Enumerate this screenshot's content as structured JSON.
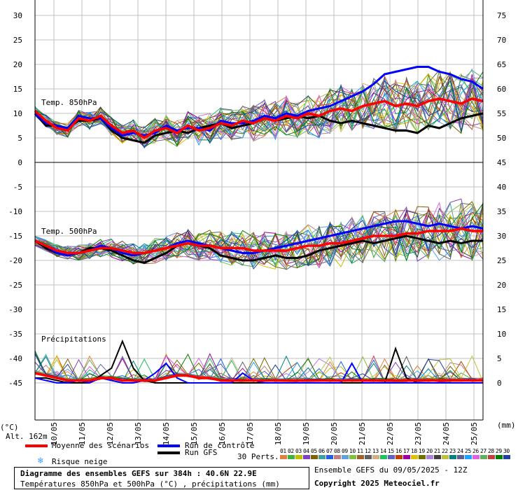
{
  "chart_data": {
    "type": "line",
    "title": "Diagramme des ensembles GEFS sur 384h : 40.6N 22.9E",
    "subtitle": "Températures 850hPa et 500hPa (°C) , précipitations (mm)",
    "dates": [
      "10/05",
      "11/05",
      "12/05",
      "13/05",
      "14/05",
      "15/05",
      "16/05",
      "17/05",
      "18/05",
      "19/05",
      "20/05",
      "21/05",
      "22/05",
      "23/05",
      "24/05",
      "25/05"
    ],
    "left_axis_ticks": [
      "30",
      "25",
      "20",
      "15",
      "10",
      "5",
      "0",
      "-5",
      "-10",
      "-15",
      "-20",
      "-25",
      "-30",
      "-35",
      "-40",
      "-45"
    ],
    "right_axis_ticks": [
      "75",
      "70",
      "65",
      "60",
      "55",
      "50",
      "45",
      "40",
      "35",
      "30",
      "25",
      "20",
      "15",
      "10",
      "5",
      "0"
    ],
    "left_unit": "(°C)",
    "right_unit": "(mm)",
    "altitude": "Alt. 162m",
    "panels": {
      "t850": {
        "label": "Temp. 850hPa",
        "mean": [
          10.5,
          8.5,
          7.0,
          6.5,
          9.0,
          8.5,
          9.5,
          7.5,
          6.0,
          6.5,
          5.0,
          6.5,
          7.0,
          6.0,
          7.5,
          6.5,
          7.0,
          8.0,
          7.5,
          8.5,
          8.0,
          9.0,
          8.5,
          9.5,
          9.0,
          10.0,
          9.5,
          10.5,
          11.0,
          10.5,
          11.5,
          12.0,
          12.5,
          11.5,
          12.0,
          11.5,
          12.5,
          13.0,
          12.5,
          12.0,
          13.0,
          12.5
        ],
        "control": [
          10.0,
          8.0,
          7.5,
          7.0,
          9.5,
          9.0,
          9.0,
          7.0,
          5.5,
          6.0,
          5.5,
          6.0,
          7.5,
          6.5,
          7.0,
          7.0,
          6.5,
          8.5,
          8.0,
          8.0,
          8.5,
          9.5,
          9.0,
          10.0,
          9.5,
          10.5,
          11.0,
          11.5,
          12.5,
          13.5,
          14.5,
          16.0,
          18.0,
          18.5,
          19.0,
          19.5,
          19.5,
          18.5,
          18.0,
          17.0,
          16.5,
          15.0
        ],
        "gfs": [
          10.0,
          7.5,
          7.5,
          7.0,
          8.5,
          8.5,
          9.0,
          6.5,
          5.0,
          4.5,
          4.0,
          5.5,
          6.0,
          6.5,
          6.0,
          7.0,
          7.5,
          8.0,
          7.0,
          7.5,
          8.0,
          9.0,
          8.5,
          9.0,
          9.5,
          9.0,
          9.5,
          8.5,
          8.0,
          8.5,
          8.0,
          7.5,
          7.0,
          6.5,
          6.5,
          6.0,
          7.5,
          7.0,
          8.0,
          9.0,
          9.5,
          10.0
        ]
      },
      "t500": {
        "label": "Temp. 500hPa",
        "mean": [
          -16.0,
          -17.0,
          -18.0,
          -18.5,
          -18.5,
          -18.0,
          -17.5,
          -17.5,
          -18.0,
          -18.5,
          -18.5,
          -18.0,
          -17.5,
          -17.0,
          -16.5,
          -17.0,
          -17.0,
          -17.5,
          -17.5,
          -17.5,
          -18.0,
          -18.0,
          -18.0,
          -18.0,
          -17.5,
          -17.0,
          -17.0,
          -16.5,
          -16.5,
          -16.0,
          -15.5,
          -15.0,
          -15.0,
          -15.0,
          -14.5,
          -14.5,
          -14.0,
          -14.0,
          -14.0,
          -13.5,
          -14.0,
          -14.0
        ],
        "control": [
          -16.0,
          -17.0,
          -18.5,
          -19.0,
          -18.5,
          -18.0,
          -17.0,
          -17.5,
          -18.5,
          -19.0,
          -18.5,
          -18.0,
          -17.5,
          -16.5,
          -16.0,
          -16.5,
          -17.0,
          -17.5,
          -18.0,
          -18.5,
          -18.5,
          -18.0,
          -17.5,
          -17.0,
          -16.5,
          -16.0,
          -15.5,
          -15.0,
          -14.5,
          -14.0,
          -13.5,
          -13.0,
          -12.5,
          -12.0,
          -12.0,
          -12.5,
          -13.0,
          -12.5,
          -13.0,
          -13.5,
          -13.0,
          -13.5
        ],
        "gfs": [
          -16.0,
          -17.5,
          -18.5,
          -19.0,
          -18.5,
          -17.5,
          -17.5,
          -18.0,
          -19.0,
          -20.0,
          -20.5,
          -19.5,
          -18.5,
          -17.0,
          -16.5,
          -17.0,
          -17.5,
          -19.0,
          -19.5,
          -20.0,
          -20.0,
          -19.5,
          -19.0,
          -19.5,
          -19.5,
          -19.0,
          -18.0,
          -17.5,
          -17.0,
          -16.5,
          -16.0,
          -16.5,
          -16.0,
          -15.5,
          -15.0,
          -15.5,
          -16.0,
          -16.5,
          -16.0,
          -16.5,
          -16.0,
          -16.0
        ]
      },
      "precip": {
        "label": "Précipitations",
        "mean": [
          2,
          1.5,
          1,
          0.5,
          0.5,
          0.5,
          1,
          1,
          0.5,
          0.5,
          0.5,
          0.5,
          1,
          1.5,
          1.5,
          1,
          1,
          0.5,
          0.5,
          0.5,
          0.5,
          0.5,
          0.5,
          0.5,
          0.5,
          0.5,
          0.5,
          0.5,
          0.5,
          0.5,
          0.5,
          0.5,
          0.5,
          0.5,
          0.5,
          0.5,
          0.5,
          0.5,
          0.5,
          0.5,
          0.5,
          0.5
        ],
        "control": [
          1,
          0.5,
          0,
          0,
          0.5,
          0,
          1,
          0.5,
          0,
          0,
          0.5,
          2,
          4,
          1,
          0,
          0,
          0,
          0,
          0,
          2,
          0.5,
          0,
          0,
          0,
          0,
          0,
          0,
          0,
          0,
          4,
          0,
          0,
          0,
          0,
          0,
          0,
          0,
          0,
          0,
          0,
          0,
          0
        ],
        "gfs": [
          1,
          1,
          0.5,
          0,
          0,
          0,
          1.5,
          3,
          8.5,
          3,
          0.5,
          0,
          0,
          0,
          0,
          0,
          0,
          0,
          0,
          0,
          0,
          0,
          0,
          0,
          0,
          0,
          0,
          0,
          0,
          0,
          0,
          0,
          0,
          7,
          1,
          0,
          0,
          0,
          0,
          0,
          0,
          0
        ]
      }
    },
    "series_styles": {
      "mean": {
        "label": "Moyenne des scénarios",
        "color": "#ff0000"
      },
      "control": {
        "label": "Run de contrôle",
        "color": "#0000ff"
      },
      "gfs": {
        "label": "Run GFS",
        "color": "#000000"
      }
    }
  },
  "legend": {
    "mean_label": "Moyenne des scénarios",
    "control_label": "Run de contrôle",
    "gfs_label": "Run GFS",
    "snow_label": "Risque neige",
    "perts_label": "30 Perts.",
    "pert_numbers": [
      "01",
      "02",
      "03",
      "04",
      "05",
      "06",
      "07",
      "08",
      "09",
      "10",
      "11",
      "12",
      "13",
      "14",
      "15",
      "16",
      "17",
      "18",
      "19",
      "20",
      "21",
      "22",
      "23",
      "24",
      "25",
      "26",
      "27",
      "28",
      "29",
      "30"
    ],
    "pert_colors": [
      "#e08040",
      "#40b040",
      "#c0c000",
      "#8040c0",
      "#806000",
      "#40a0a0",
      "#2060e0",
      "#c08080",
      "#60a0e0",
      "#80c040",
      "#a06030",
      "#606060",
      "#d0b080",
      "#20c060",
      "#6060c0",
      "#c04000",
      "#a000a0",
      "#e0c000",
      "#707000",
      "#b080e0",
      "#404040",
      "#c0c040",
      "#008080",
      "#606090",
      "#20a0ff",
      "#e060e0",
      "#60b060",
      "#c04040",
      "#008000",
      "#2040a0"
    ]
  },
  "footer": {
    "title": "Diagramme des ensembles GEFS sur 384h : 40.6N 22.9E",
    "subtitle": "Températures 850hPa et 500hPa (°C) , précipitations (mm)",
    "run_info": "Ensemble GEFS du 09/05/2025 - 12Z",
    "copyright": "Copyright 2025 Meteociel.fr"
  }
}
